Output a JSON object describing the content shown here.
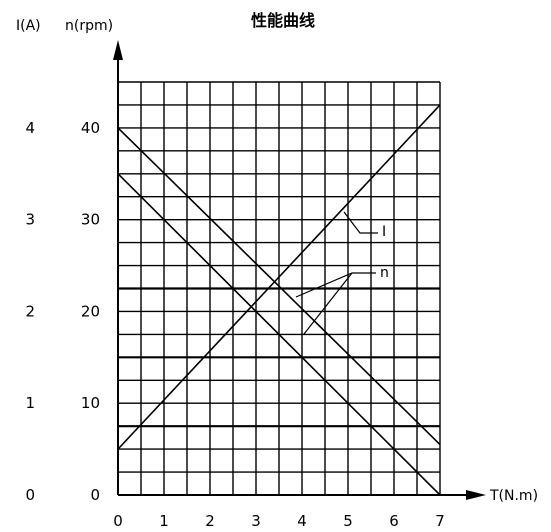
{
  "chart_data": {
    "type": "line",
    "title": "性能曲线",
    "xlabel": "T(N.m)",
    "ylabel_current": "I(A)",
    "ylabel_speed": "n(rpm)",
    "x_ticks": [
      "0",
      "1",
      "2",
      "3",
      "4",
      "5",
      "6",
      "7"
    ],
    "y_ticks_current": [
      "0",
      "1",
      "2",
      "3",
      "4"
    ],
    "y_ticks_speed": [
      "0",
      "10",
      "20",
      "30",
      "40"
    ],
    "xlim": [
      0,
      7
    ],
    "ylim_speed": [
      0,
      45
    ],
    "ylim_current": [
      0,
      4.5
    ],
    "grid": true,
    "series": [
      {
        "name": "I",
        "x": [
          0,
          7
        ],
        "y": [
          5,
          42.5
        ]
      },
      {
        "name": "n",
        "x": [
          0,
          7
        ],
        "y": [
          40,
          5.5
        ]
      },
      {
        "name": "n",
        "x": [
          0,
          7
        ],
        "y": [
          35,
          0
        ]
      }
    ]
  }
}
